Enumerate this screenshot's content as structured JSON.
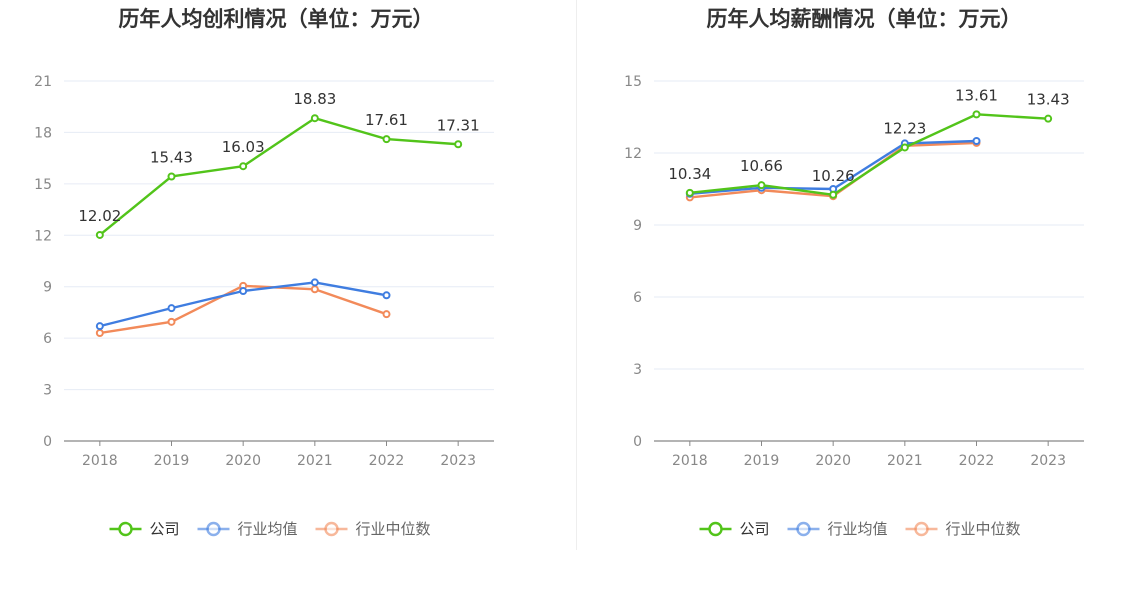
{
  "chart_data": [
    {
      "type": "line",
      "title": "历年人均创利情况（单位：万元）",
      "categories": [
        "2018",
        "2019",
        "2020",
        "2021",
        "2022",
        "2023"
      ],
      "ylim": [
        0,
        21
      ],
      "yticks": [
        "0",
        "3",
        "6",
        "9",
        "12",
        "15",
        "18",
        "21"
      ],
      "grid": true,
      "legend_position": "bottom-center",
      "series": [
        {
          "name": "公司",
          "color": "#52c41a",
          "values": [
            12.02,
            15.43,
            16.03,
            18.83,
            17.61,
            17.31
          ],
          "labels": [
            "12.02",
            "15.43",
            "16.03",
            "18.83",
            "17.61",
            "17.31"
          ]
        },
        {
          "name": "行业均值",
          "color": "#3f7de0",
          "values": [
            6.7,
            7.75,
            8.75,
            9.25,
            8.5,
            null
          ]
        },
        {
          "name": "行业中位数",
          "color": "#f28a5a",
          "values": [
            6.3,
            6.95,
            9.05,
            8.85,
            7.4,
            null
          ]
        }
      ]
    },
    {
      "type": "line",
      "title": "历年人均薪酬情况（单位：万元）",
      "categories": [
        "2018",
        "2019",
        "2020",
        "2021",
        "2022",
        "2023"
      ],
      "ylim": [
        0,
        15
      ],
      "yticks": [
        "0",
        "3",
        "6",
        "9",
        "12",
        "15"
      ],
      "grid": true,
      "legend_position": "bottom-center",
      "series": [
        {
          "name": "公司",
          "color": "#52c41a",
          "values": [
            10.34,
            10.66,
            10.26,
            12.23,
            13.61,
            13.43
          ],
          "labels": [
            "10.34",
            "10.66",
            "10.26",
            "12.23",
            "13.61",
            "13.43"
          ]
        },
        {
          "name": "行业均值",
          "color": "#3f7de0",
          "values": [
            10.3,
            10.55,
            10.5,
            12.4,
            12.5,
            null
          ]
        },
        {
          "name": "行业中位数",
          "color": "#f28a5a",
          "values": [
            10.15,
            10.45,
            10.2,
            12.3,
            12.42,
            null
          ]
        }
      ]
    }
  ]
}
